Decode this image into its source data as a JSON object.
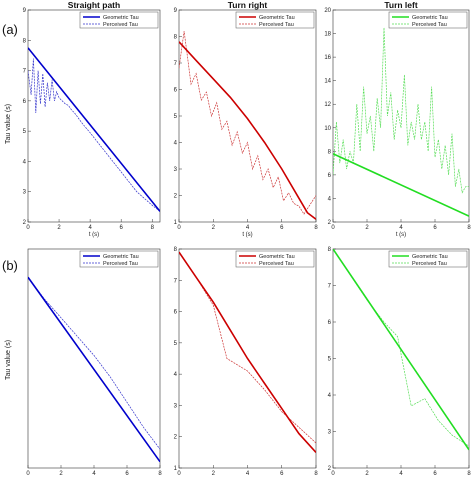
{
  "figure": {
    "panel_labels": [
      "(a)",
      "(b)"
    ],
    "column_titles": [
      "Straight path",
      "Turn right",
      "Turn left"
    ],
    "ylabel": "Tau value (s)",
    "xlabel": "t (s)"
  },
  "chart_data": [
    {
      "id": "a1",
      "type": "line",
      "row": "(a)",
      "title": "Straight path",
      "xlabel": "t (s)",
      "ylabel": "Tau value (s)",
      "xlim": [
        0,
        8.5
      ],
      "ylim": [
        2,
        9
      ],
      "xticks": [
        0,
        2,
        4,
        6,
        8
      ],
      "yticks": [
        2,
        3,
        4,
        5,
        6,
        7,
        8,
        9
      ],
      "legend": "top-right",
      "series": [
        {
          "name": "Geometric Tau",
          "color": "#0000cc",
          "style": "solid",
          "x": [
            0,
            8.5
          ],
          "y": [
            7.75,
            2.35
          ]
        },
        {
          "name": "Perceived Tau",
          "color": "#3333cc",
          "style": "dashed",
          "x": [
            0,
            0.2,
            0.35,
            0.5,
            0.65,
            0.8,
            0.95,
            1.1,
            1.25,
            1.4,
            1.55,
            1.7,
            1.85,
            2.0,
            2.2,
            2.4,
            2.6,
            2.8,
            3.0,
            3.5,
            4.0,
            5.0,
            6.0,
            7.0,
            8.0,
            8.5
          ],
          "y": [
            7.0,
            6.2,
            7.4,
            5.6,
            7.0,
            5.9,
            6.9,
            5.8,
            6.6,
            6.0,
            6.7,
            6.0,
            6.3,
            6.1,
            6.0,
            5.9,
            5.85,
            5.7,
            5.6,
            5.25,
            4.95,
            4.3,
            3.65,
            3.0,
            2.55,
            2.35
          ]
        }
      ]
    },
    {
      "id": "a2",
      "type": "line",
      "row": "(a)",
      "title": "Turn right",
      "xlabel": "t (s)",
      "ylabel": "",
      "xlim": [
        0,
        8
      ],
      "ylim": [
        1,
        9
      ],
      "xticks": [
        0,
        2,
        4,
        6,
        8
      ],
      "yticks": [
        1,
        2,
        3,
        4,
        5,
        6,
        7,
        8,
        9
      ],
      "legend": "top-right",
      "series": [
        {
          "name": "Geometric Tau",
          "color": "#cc0000",
          "style": "solid",
          "x": [
            0,
            1,
            2,
            3,
            4,
            5,
            6,
            7,
            7.5,
            8
          ],
          "y": [
            7.8,
            7.1,
            6.4,
            5.7,
            4.9,
            4.0,
            3.0,
            1.9,
            1.35,
            1.1
          ]
        },
        {
          "name": "Perceived Tau",
          "color": "#cc3333",
          "style": "dashed",
          "x": [
            0,
            0.3,
            0.5,
            0.7,
            1.0,
            1.3,
            1.6,
            1.9,
            2.2,
            2.5,
            2.8,
            3.1,
            3.4,
            3.7,
            4.0,
            4.3,
            4.6,
            4.9,
            5.2,
            5.5,
            5.8,
            6.1,
            6.4,
            6.7,
            7.0,
            7.3,
            7.6,
            8.0
          ],
          "y": [
            6.8,
            8.2,
            7.2,
            6.2,
            6.6,
            5.6,
            5.9,
            5.0,
            5.5,
            4.5,
            4.8,
            3.9,
            4.4,
            3.6,
            4.0,
            3.0,
            3.5,
            2.6,
            3.0,
            2.3,
            2.7,
            1.8,
            2.1,
            1.7,
            1.6,
            1.3,
            1.6,
            2.0
          ]
        }
      ]
    },
    {
      "id": "a3",
      "type": "line",
      "row": "(a)",
      "title": "Turn left",
      "xlabel": "t (s)",
      "ylabel": "",
      "xlim": [
        0,
        8
      ],
      "ylim": [
        2,
        20
      ],
      "xticks": [
        0,
        2,
        4,
        6,
        8
      ],
      "yticks": [
        2,
        4,
        6,
        8,
        10,
        12,
        14,
        16,
        18,
        20
      ],
      "legend": "top-right",
      "series": [
        {
          "name": "Geometric Tau",
          "color": "#22dd22",
          "style": "solid",
          "x": [
            0,
            8
          ],
          "y": [
            7.8,
            2.5
          ]
        },
        {
          "name": "Perceived Tau",
          "color": "#55dd55",
          "style": "dashed",
          "x": [
            0,
            0.2,
            0.4,
            0.6,
            0.8,
            1.0,
            1.2,
            1.4,
            1.6,
            1.8,
            2.0,
            2.2,
            2.4,
            2.6,
            2.8,
            3.0,
            3.2,
            3.4,
            3.6,
            3.8,
            4.0,
            4.2,
            4.4,
            4.6,
            4.8,
            5.0,
            5.2,
            5.4,
            5.6,
            5.8,
            6.0,
            6.2,
            6.4,
            6.6,
            6.8,
            7.0,
            7.2,
            7.4,
            7.6,
            7.8,
            8.0
          ],
          "y": [
            6.0,
            10.5,
            7.0,
            9.0,
            6.5,
            8.0,
            7.0,
            12.0,
            8.0,
            13.5,
            9.5,
            11.0,
            8.0,
            12.5,
            10.0,
            18.5,
            11.0,
            13.0,
            9.0,
            11.5,
            10.0,
            14.5,
            8.5,
            10.5,
            9.0,
            12.0,
            9.0,
            10.5,
            8.0,
            13.5,
            7.5,
            9.0,
            6.5,
            8.5,
            6.0,
            9.5,
            5.0,
            6.5,
            4.5,
            5.0,
            5.0
          ]
        }
      ]
    },
    {
      "id": "b1",
      "type": "line",
      "row": "(b)",
      "title": "",
      "xlabel": "",
      "ylabel": "Tau value (s)",
      "xlim": [
        0,
        8
      ],
      "ylim": [
        2,
        9
      ],
      "xticks": [
        0,
        2,
        4,
        6,
        8
      ],
      "yticks": [],
      "legend": "top-right",
      "series": [
        {
          "name": "Geometric Tau",
          "color": "#0000cc",
          "style": "solid",
          "x": [
            0,
            8
          ],
          "y": [
            8.1,
            2.2
          ]
        },
        {
          "name": "Perceived Tau",
          "color": "#3333cc",
          "style": "dashed",
          "x": [
            0,
            1,
            2,
            3,
            4,
            5,
            6,
            7,
            8
          ],
          "y": [
            8.1,
            7.4,
            6.8,
            6.2,
            5.6,
            4.9,
            4.1,
            3.3,
            2.6
          ]
        }
      ]
    },
    {
      "id": "b2",
      "type": "line",
      "row": "(b)",
      "title": "",
      "xlabel": "",
      "ylabel": "",
      "xlim": [
        0,
        8
      ],
      "ylim": [
        1,
        8
      ],
      "xticks": [
        0,
        2,
        4,
        6,
        8
      ],
      "yticks": [
        1,
        2,
        3,
        4,
        5,
        6,
        7,
        8
      ],
      "legend": "top-right",
      "series": [
        {
          "name": "Geometric Tau",
          "color": "#cc0000",
          "style": "solid",
          "x": [
            0,
            1,
            2,
            3,
            4,
            5,
            6,
            7,
            8
          ],
          "y": [
            7.9,
            7.1,
            6.3,
            5.4,
            4.5,
            3.7,
            2.9,
            2.1,
            1.5
          ]
        },
        {
          "name": "Perceived Tau",
          "color": "#cc3333",
          "style": "dashed",
          "x": [
            0,
            1.0,
            2.0,
            2.8,
            4.0,
            5.0,
            6.0,
            7.0,
            8.0
          ],
          "y": [
            7.9,
            7.1,
            6.2,
            4.5,
            4.1,
            3.5,
            2.8,
            2.3,
            1.8
          ]
        }
      ]
    },
    {
      "id": "b3",
      "type": "line",
      "row": "(b)",
      "title": "",
      "xlabel": "",
      "ylabel": "",
      "xlim": [
        0,
        8
      ],
      "ylim": [
        2,
        8
      ],
      "xticks": [
        0,
        2,
        4,
        6,
        8
      ],
      "yticks": [
        2,
        3,
        4,
        5,
        6,
        7,
        8
      ],
      "legend": "top-right",
      "series": [
        {
          "name": "Geometric Tau",
          "color": "#22dd22",
          "style": "solid",
          "x": [
            0,
            8
          ],
          "y": [
            8.0,
            2.5
          ]
        },
        {
          "name": "Perceived Tau",
          "color": "#55dd55",
          "style": "dashed",
          "x": [
            0,
            1.0,
            2.0,
            3.0,
            3.8,
            4.6,
            5.4,
            6.2,
            7.0,
            8.0
          ],
          "y": [
            8.0,
            7.3,
            6.6,
            6.0,
            5.6,
            3.7,
            3.9,
            3.3,
            2.9,
            2.6
          ]
        }
      ]
    }
  ]
}
